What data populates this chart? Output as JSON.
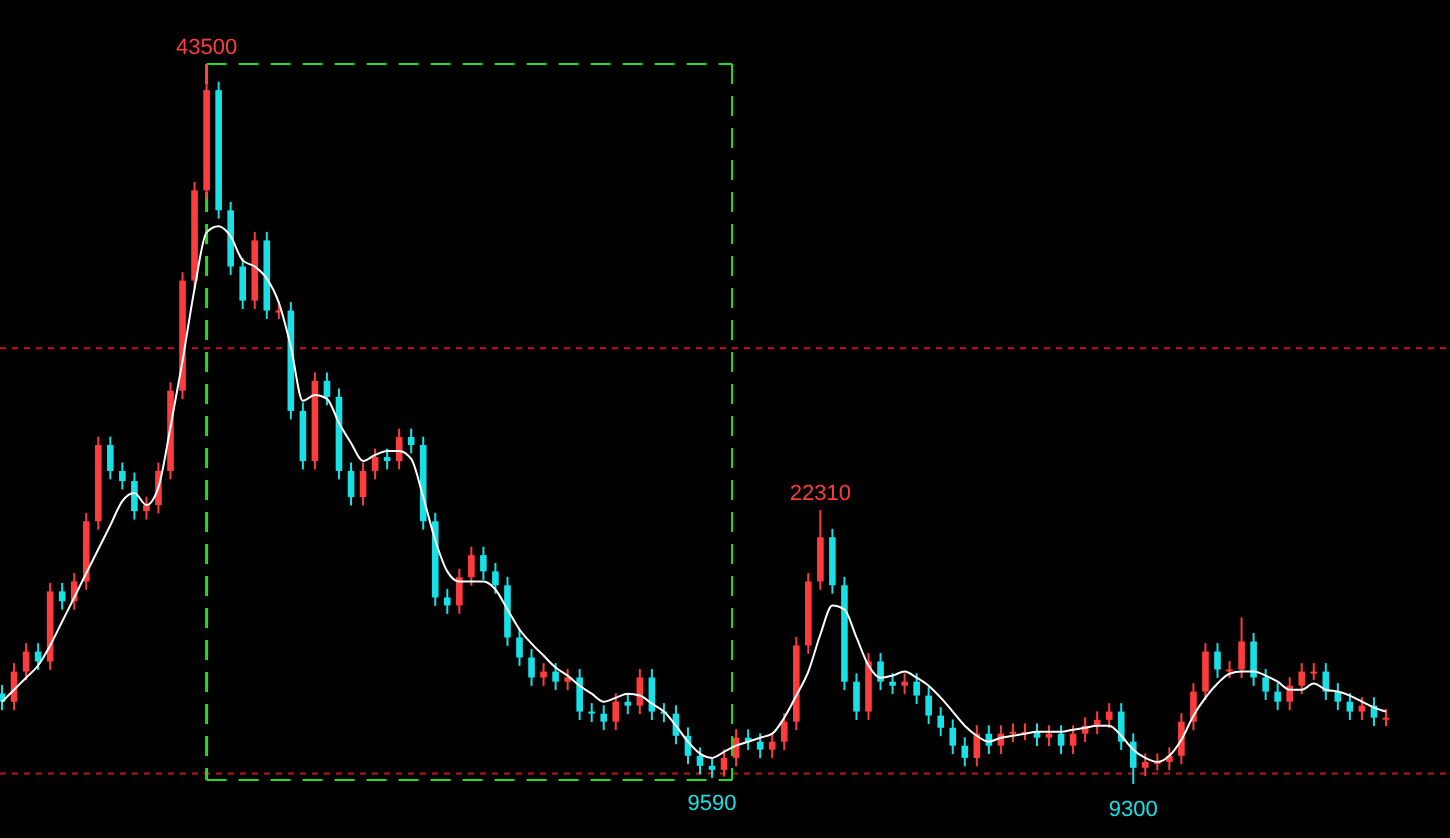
{
  "chart_data": {
    "type": "candlestick",
    "categories": [
      null,
      null,
      null,
      null,
      null,
      null,
      null,
      null,
      null,
      null,
      null,
      null,
      null,
      null,
      null,
      null,
      null,
      null,
      null,
      null,
      null,
      null,
      null,
      null,
      null,
      null,
      null,
      null,
      null,
      null,
      null,
      null,
      null,
      null,
      null,
      null,
      null,
      null,
      null,
      null,
      null,
      null,
      null,
      null,
      null,
      null,
      null,
      null,
      null,
      null,
      null,
      null,
      null,
      null,
      null,
      null,
      null,
      null,
      null,
      null,
      null,
      null,
      null,
      null,
      null,
      null,
      null,
      null,
      null,
      null,
      null,
      null,
      null,
      null,
      null,
      null,
      null,
      null,
      null,
      null,
      null,
      null,
      null,
      null,
      null,
      null,
      null,
      null,
      null,
      null,
      null,
      null,
      null,
      null,
      null,
      null,
      null,
      null,
      null,
      null,
      null,
      null,
      null,
      null,
      null,
      null,
      null,
      null,
      null,
      null,
      null,
      null,
      null,
      null,
      null,
      null
    ],
    "ohlc": [
      [
        13600,
        14000,
        12810,
        13210
      ],
      [
        13210,
        15040,
        12810,
        14640
      ],
      [
        14640,
        15990,
        14240,
        15590
      ],
      [
        15590,
        15990,
        14720,
        15120
      ],
      [
        15120,
        18850,
        14720,
        18450
      ],
      [
        18450,
        18850,
        17580,
        17980
      ],
      [
        17980,
        19320,
        17580,
        18920
      ],
      [
        18920,
        22180,
        18520,
        21780
      ],
      [
        21780,
        25800,
        21380,
        25400
      ],
      [
        25400,
        25800,
        23770,
        24170
      ],
      [
        24170,
        24570,
        23290,
        23690
      ],
      [
        23690,
        24090,
        21860,
        22260
      ],
      [
        22260,
        22950,
        21860,
        22550
      ],
      [
        22550,
        24570,
        22150,
        24170
      ],
      [
        24170,
        28380,
        23770,
        27980
      ],
      [
        27980,
        33610,
        27580,
        33210
      ],
      [
        33210,
        37900,
        32810,
        37500
      ],
      [
        37500,
        43500,
        37100,
        42260
      ],
      [
        42260,
        42660,
        36150,
        36550
      ],
      [
        36550,
        36950,
        33480,
        33880
      ],
      [
        33880,
        34280,
        31860,
        32260
      ],
      [
        32260,
        35520,
        31860,
        35120
      ],
      [
        35120,
        35520,
        31390,
        31790
      ],
      [
        31790,
        32190,
        31390,
        31790
      ],
      [
        31790,
        32190,
        26620,
        27020
      ],
      [
        27020,
        27420,
        24240,
        24640
      ],
      [
        24640,
        28850,
        24240,
        28450
      ],
      [
        28450,
        28850,
        27290,
        27690
      ],
      [
        27690,
        28090,
        23770,
        24170
      ],
      [
        24170,
        24570,
        22530,
        22930
      ],
      [
        22930,
        24570,
        22530,
        24170
      ],
      [
        24170,
        25230,
        23770,
        24830
      ],
      [
        24830,
        25230,
        24240,
        24640
      ],
      [
        24640,
        26180,
        24240,
        25780
      ],
      [
        25780,
        26180,
        25000,
        25400
      ],
      [
        25400,
        25800,
        21380,
        21780
      ],
      [
        21780,
        22180,
        17760,
        18160
      ],
      [
        18160,
        18560,
        17380,
        17780
      ],
      [
        17780,
        19520,
        17380,
        19120
      ],
      [
        19120,
        20570,
        18720,
        20170
      ],
      [
        20170,
        20570,
        19000,
        19400
      ],
      [
        19400,
        19800,
        18340,
        18740
      ],
      [
        18740,
        19140,
        15860,
        16260
      ],
      [
        16260,
        16660,
        14910,
        15310
      ],
      [
        15310,
        15710,
        13960,
        14360
      ],
      [
        14360,
        15040,
        13960,
        14640
      ],
      [
        14640,
        15040,
        13760,
        14160
      ],
      [
        14160,
        14760,
        13760,
        14360
      ],
      [
        14360,
        14760,
        12340,
        12740
      ],
      [
        12740,
        13140,
        12240,
        12640
      ],
      [
        12640,
        13040,
        11860,
        12260
      ],
      [
        12260,
        13610,
        11860,
        13210
      ],
      [
        13210,
        13610,
        12620,
        13020
      ],
      [
        13020,
        14760,
        12620,
        14360
      ],
      [
        14360,
        14760,
        12340,
        12740
      ],
      [
        12740,
        13140,
        12240,
        12640
      ],
      [
        12640,
        13040,
        11190,
        11590
      ],
      [
        11590,
        11990,
        10240,
        10640
      ],
      [
        10640,
        11040,
        9760,
        10160
      ],
      [
        10160,
        10560,
        9590,
        9970
      ],
      [
        9970,
        10940,
        9650,
        10540
      ],
      [
        10540,
        11900,
        10140,
        11500
      ],
      [
        11500,
        11900,
        10910,
        11310
      ],
      [
        11310,
        11710,
        10530,
        10930
      ],
      [
        10930,
        11710,
        10530,
        11310
      ],
      [
        11310,
        12660,
        10910,
        12260
      ],
      [
        12260,
        16280,
        11860,
        15880
      ],
      [
        15880,
        19320,
        15480,
        18920
      ],
      [
        18920,
        22310,
        18520,
        21020
      ],
      [
        21020,
        21420,
        18340,
        18740
      ],
      [
        18740,
        19140,
        13760,
        14160
      ],
      [
        14160,
        14560,
        12340,
        12740
      ],
      [
        12740,
        15520,
        12340,
        15120
      ],
      [
        15120,
        15520,
        13760,
        14160
      ],
      [
        14160,
        14560,
        13570,
        13970
      ],
      [
        13970,
        14560,
        13570,
        14160
      ],
      [
        14160,
        14560,
        13100,
        13500
      ],
      [
        13500,
        13900,
        12150,
        12550
      ],
      [
        12550,
        12950,
        11570,
        11970
      ],
      [
        11970,
        12370,
        10720,
        11120
      ],
      [
        11120,
        11520,
        10140,
        10540
      ],
      [
        10540,
        12090,
        10140,
        11690
      ],
      [
        11690,
        12090,
        10720,
        11120
      ],
      [
        11120,
        12090,
        10720,
        11690
      ],
      [
        11690,
        12180,
        11290,
        11780
      ],
      [
        11780,
        12180,
        11380,
        11780
      ],
      [
        11780,
        12180,
        11100,
        11500
      ],
      [
        11500,
        12090,
        11100,
        11690
      ],
      [
        11690,
        12090,
        10720,
        11120
      ],
      [
        11120,
        12090,
        10720,
        11690
      ],
      [
        11690,
        12470,
        11290,
        12070
      ],
      [
        12070,
        12750,
        11670,
        12350
      ],
      [
        12350,
        13140,
        11950,
        12740
      ],
      [
        12740,
        13140,
        10910,
        11310
      ],
      [
        11310,
        11710,
        9300,
        10070
      ],
      [
        10070,
        10750,
        9670,
        10350
      ],
      [
        10350,
        10750,
        9950,
        10350
      ],
      [
        10350,
        11040,
        9950,
        10640
      ],
      [
        10640,
        12660,
        10240,
        12260
      ],
      [
        12260,
        14090,
        11860,
        13690
      ],
      [
        13690,
        15990,
        13290,
        15590
      ],
      [
        15590,
        15990,
        14340,
        14740
      ],
      [
        14740,
        15140,
        14340,
        14740
      ],
      [
        14740,
        17210,
        14340,
        16070
      ],
      [
        16070,
        16470,
        13960,
        14360
      ],
      [
        14360,
        14760,
        13290,
        13690
      ],
      [
        13690,
        14090,
        12810,
        13210
      ],
      [
        13210,
        14370,
        12810,
        13970
      ],
      [
        13970,
        15040,
        13570,
        14640
      ],
      [
        14640,
        15040,
        14240,
        14640
      ],
      [
        14640,
        15040,
        13290,
        13690
      ],
      [
        13690,
        14090,
        12810,
        13210
      ],
      [
        13210,
        13610,
        12340,
        12740
      ],
      [
        12740,
        13420,
        12340,
        13020
      ],
      [
        13020,
        13420,
        12050,
        12450
      ],
      [
        12450,
        12850,
        12050,
        12450
      ]
    ],
    "series": [
      {
        "type": "line",
        "color": "#ffffff",
        "values": [
          13210,
          13780,
          14350,
          14930,
          15880,
          17020,
          18160,
          19310,
          20450,
          21590,
          22740,
          23120,
          22550,
          23400,
          26260,
          29400,
          32830,
          35500,
          35790,
          35310,
          34170,
          33880,
          33310,
          32170,
          30070,
          27500,
          27780,
          27590,
          26450,
          25500,
          24640,
          24930,
          25120,
          25120,
          24740,
          22930,
          20880,
          19400,
          18920,
          18920,
          18920,
          18540,
          17590,
          16640,
          15970,
          15400,
          14830,
          14450,
          13970,
          13590,
          13210,
          13400,
          13590,
          13500,
          13120,
          12740,
          12070,
          11310,
          10740,
          10540,
          10830,
          11120,
          11310,
          11500,
          11690,
          12450,
          13500,
          14640,
          16400,
          17780,
          17590,
          16260,
          14930,
          14350,
          14450,
          14640,
          14350,
          13970,
          13400,
          12740,
          12070,
          11590,
          11310,
          11500,
          11590,
          11690,
          11780,
          11780,
          11780,
          11880,
          11970,
          12070,
          12070,
          11590,
          10930,
          10540,
          10350,
          10640,
          11400,
          12540,
          13400,
          14070,
          14540,
          14640,
          14640,
          14450,
          14160,
          13780,
          13780,
          14070,
          13780,
          13690,
          13500,
          13210,
          12930,
          12740
        ]
      }
    ],
    "ref_lines": [
      {
        "axis": "y",
        "value": 30000,
        "color": "#c01818",
        "line_style": "dotted"
      },
      {
        "axis": "y",
        "value": 9800,
        "color": "#c01818",
        "line_style": "dotted"
      }
    ],
    "annotations": [
      {
        "text": "43500",
        "y": 43500
      },
      {
        "text": "22310",
        "y": 22310
      },
      {
        "text": "9590",
        "y": 9590
      },
      {
        "text": "9300",
        "y": 9300
      }
    ]
  }
}
